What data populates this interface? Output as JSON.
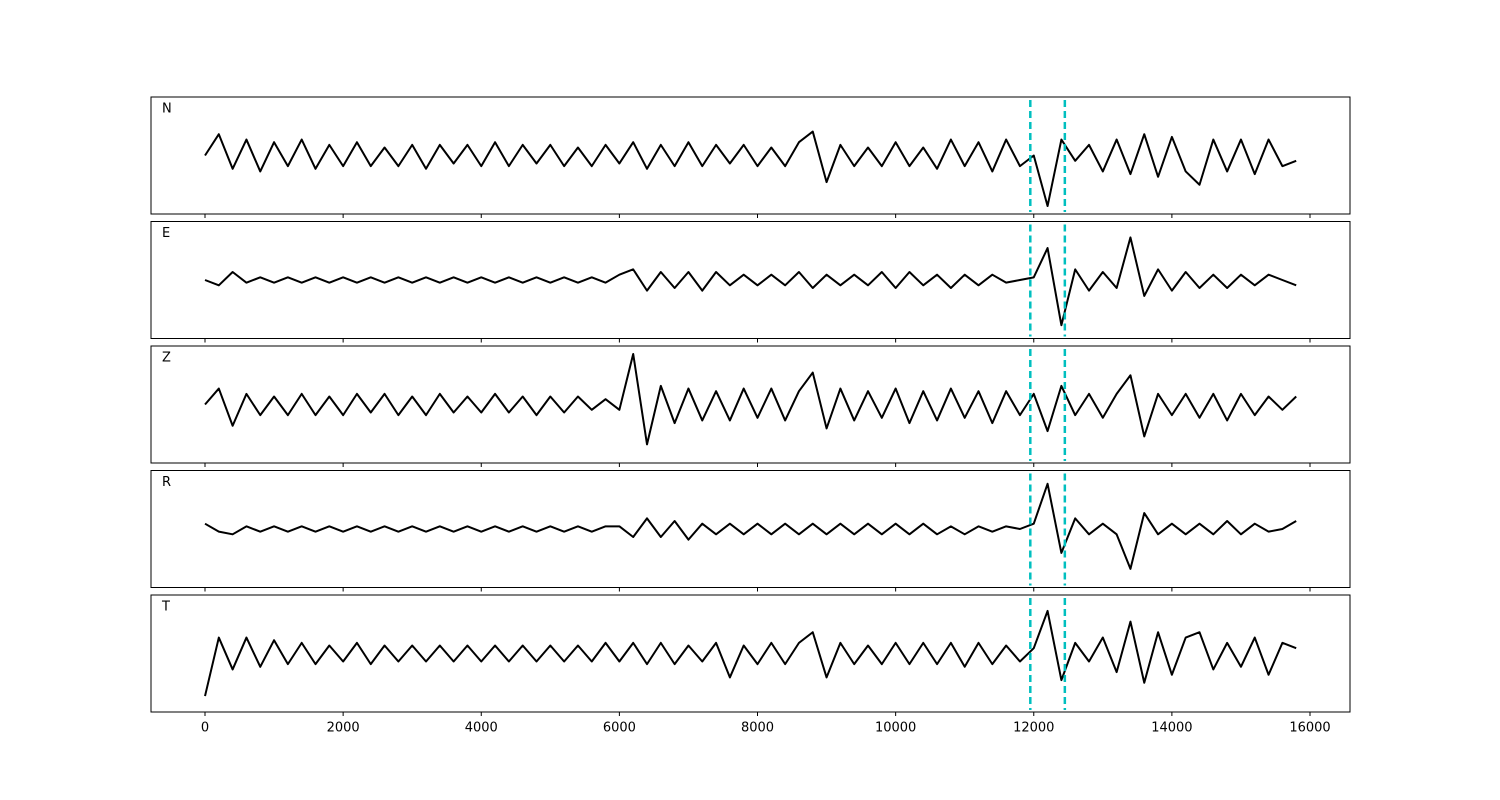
{
  "chart_data": {
    "type": "line",
    "layout": "stacked",
    "x": [
      0,
      200,
      400,
      600,
      800,
      1000,
      1200,
      1400,
      1600,
      1800,
      2000,
      2200,
      2400,
      2600,
      2800,
      3000,
      3200,
      3400,
      3600,
      3800,
      4000,
      4200,
      4400,
      4600,
      4800,
      5000,
      5200,
      5400,
      5600,
      5800,
      6000,
      6200,
      6400,
      6600,
      6800,
      7000,
      7200,
      7400,
      7600,
      7800,
      8000,
      8200,
      8400,
      8600,
      8800,
      9000,
      9200,
      9400,
      9600,
      9800,
      10000,
      10200,
      10400,
      10600,
      10800,
      11000,
      11200,
      11400,
      11600,
      11800,
      12000,
      12200,
      12400,
      12600,
      12800,
      13000,
      13200,
      13400,
      13600,
      13800,
      14000,
      14200,
      14400,
      14600,
      14800,
      15000,
      15200,
      15400,
      15600,
      15800
    ],
    "series": [
      {
        "name": "N",
        "color": "#000000",
        "values": [
          0.0,
          0.4,
          -0.25,
          0.3,
          -0.3,
          0.25,
          -0.2,
          0.3,
          -0.25,
          0.2,
          -0.2,
          0.25,
          -0.2,
          0.15,
          -0.2,
          0.2,
          -0.25,
          0.2,
          -0.15,
          0.2,
          -0.2,
          0.25,
          -0.2,
          0.2,
          -0.15,
          0.2,
          -0.2,
          0.15,
          -0.2,
          0.2,
          -0.15,
          0.25,
          -0.25,
          0.2,
          -0.2,
          0.25,
          -0.2,
          0.2,
          -0.15,
          0.2,
          -0.2,
          0.15,
          -0.2,
          0.25,
          0.45,
          -0.5,
          0.2,
          -0.2,
          0.15,
          -0.2,
          0.25,
          -0.2,
          0.15,
          -0.25,
          0.3,
          -0.2,
          0.25,
          -0.3,
          0.3,
          -0.2,
          0.0,
          -0.95,
          0.3,
          -0.1,
          0.2,
          -0.3,
          0.3,
          -0.35,
          0.4,
          -0.4,
          0.35,
          -0.3,
          -0.55,
          0.3,
          -0.3,
          0.3,
          -0.35,
          0.3,
          -0.2,
          -0.1
        ]
      },
      {
        "name": "E",
        "color": "#000000",
        "values": [
          0.0,
          -0.1,
          0.15,
          -0.05,
          0.05,
          -0.05,
          0.05,
          -0.05,
          0.05,
          -0.05,
          0.05,
          -0.05,
          0.05,
          -0.05,
          0.05,
          -0.05,
          0.05,
          -0.05,
          0.05,
          -0.05,
          0.05,
          -0.05,
          0.05,
          -0.05,
          0.05,
          -0.05,
          0.05,
          -0.05,
          0.05,
          -0.05,
          0.1,
          0.2,
          -0.2,
          0.15,
          -0.15,
          0.15,
          -0.2,
          0.15,
          -0.1,
          0.1,
          -0.1,
          0.1,
          -0.1,
          0.15,
          -0.15,
          0.1,
          -0.1,
          0.1,
          -0.1,
          0.15,
          -0.15,
          0.15,
          -0.1,
          0.1,
          -0.15,
          0.1,
          -0.1,
          0.1,
          -0.05,
          0.0,
          0.05,
          0.6,
          -0.85,
          0.2,
          -0.2,
          0.15,
          -0.15,
          0.8,
          -0.3,
          0.2,
          -0.2,
          0.15,
          -0.15,
          0.1,
          -0.15,
          0.1,
          -0.1,
          0.1,
          0.0,
          -0.1
        ]
      },
      {
        "name": "Z",
        "color": "#000000",
        "values": [
          0.0,
          0.3,
          -0.4,
          0.2,
          -0.2,
          0.15,
          -0.2,
          0.2,
          -0.2,
          0.15,
          -0.2,
          0.2,
          -0.15,
          0.2,
          -0.2,
          0.15,
          -0.2,
          0.2,
          -0.15,
          0.15,
          -0.15,
          0.2,
          -0.15,
          0.15,
          -0.2,
          0.15,
          -0.15,
          0.15,
          -0.1,
          0.1,
          -0.1,
          0.95,
          -0.75,
          0.35,
          -0.35,
          0.3,
          -0.3,
          0.25,
          -0.3,
          0.3,
          -0.25,
          0.3,
          -0.3,
          0.25,
          0.6,
          -0.45,
          0.3,
          -0.3,
          0.25,
          -0.25,
          0.3,
          -0.35,
          0.25,
          -0.3,
          0.3,
          -0.25,
          0.25,
          -0.35,
          0.25,
          -0.2,
          0.2,
          -0.5,
          0.35,
          -0.2,
          0.2,
          -0.25,
          0.2,
          0.55,
          -0.6,
          0.2,
          -0.2,
          0.2,
          -0.25,
          0.2,
          -0.3,
          0.2,
          -0.2,
          0.15,
          -0.1,
          0.15
        ]
      },
      {
        "name": "R",
        "color": "#000000",
        "values": [
          0.1,
          -0.05,
          -0.1,
          0.05,
          -0.05,
          0.05,
          -0.05,
          0.05,
          -0.05,
          0.05,
          -0.05,
          0.05,
          -0.05,
          0.05,
          -0.05,
          0.05,
          -0.05,
          0.05,
          -0.05,
          0.05,
          -0.05,
          0.05,
          -0.05,
          0.05,
          -0.05,
          0.05,
          -0.05,
          0.05,
          -0.05,
          0.05,
          0.05,
          -0.15,
          0.2,
          -0.15,
          0.15,
          -0.2,
          0.1,
          -0.1,
          0.1,
          -0.1,
          0.1,
          -0.1,
          0.1,
          -0.1,
          0.1,
          -0.1,
          0.1,
          -0.1,
          0.1,
          -0.1,
          0.1,
          -0.1,
          0.1,
          -0.1,
          0.05,
          -0.1,
          0.05,
          -0.05,
          0.05,
          0.0,
          0.1,
          0.85,
          -0.45,
          0.2,
          -0.1,
          0.1,
          -0.1,
          -0.75,
          0.3,
          -0.1,
          0.1,
          -0.1,
          0.1,
          -0.1,
          0.15,
          -0.1,
          0.1,
          -0.05,
          0.0,
          0.15
        ]
      },
      {
        "name": "T",
        "color": "#000000",
        "values": [
          -0.8,
          0.3,
          -0.3,
          0.3,
          -0.25,
          0.25,
          -0.2,
          0.2,
          -0.2,
          0.15,
          -0.15,
          0.2,
          -0.2,
          0.15,
          -0.15,
          0.15,
          -0.15,
          0.15,
          -0.15,
          0.15,
          -0.15,
          0.15,
          -0.15,
          0.15,
          -0.15,
          0.15,
          -0.15,
          0.15,
          -0.15,
          0.2,
          -0.15,
          0.2,
          -0.2,
          0.2,
          -0.2,
          0.15,
          -0.15,
          0.2,
          -0.45,
          0.15,
          -0.2,
          0.2,
          -0.2,
          0.2,
          0.4,
          -0.45,
          0.2,
          -0.2,
          0.15,
          -0.2,
          0.2,
          -0.2,
          0.2,
          -0.2,
          0.2,
          -0.25,
          0.2,
          -0.2,
          0.15,
          -0.15,
          0.1,
          0.8,
          -0.5,
          0.2,
          -0.15,
          0.3,
          -0.35,
          0.6,
          -0.55,
          0.4,
          -0.4,
          0.3,
          0.4,
          -0.3,
          0.2,
          -0.25,
          0.3,
          -0.4,
          0.2,
          0.1
        ]
      }
    ],
    "markers": [
      11950,
      12450
    ],
    "marker_color": "#00bfbf",
    "xlim": [
      -782,
      16579
    ],
    "xticks": [
      0,
      2000,
      4000,
      6000,
      8000,
      10000,
      12000,
      14000,
      16000
    ],
    "ylim": [
      -1.1,
      1.1
    ]
  }
}
